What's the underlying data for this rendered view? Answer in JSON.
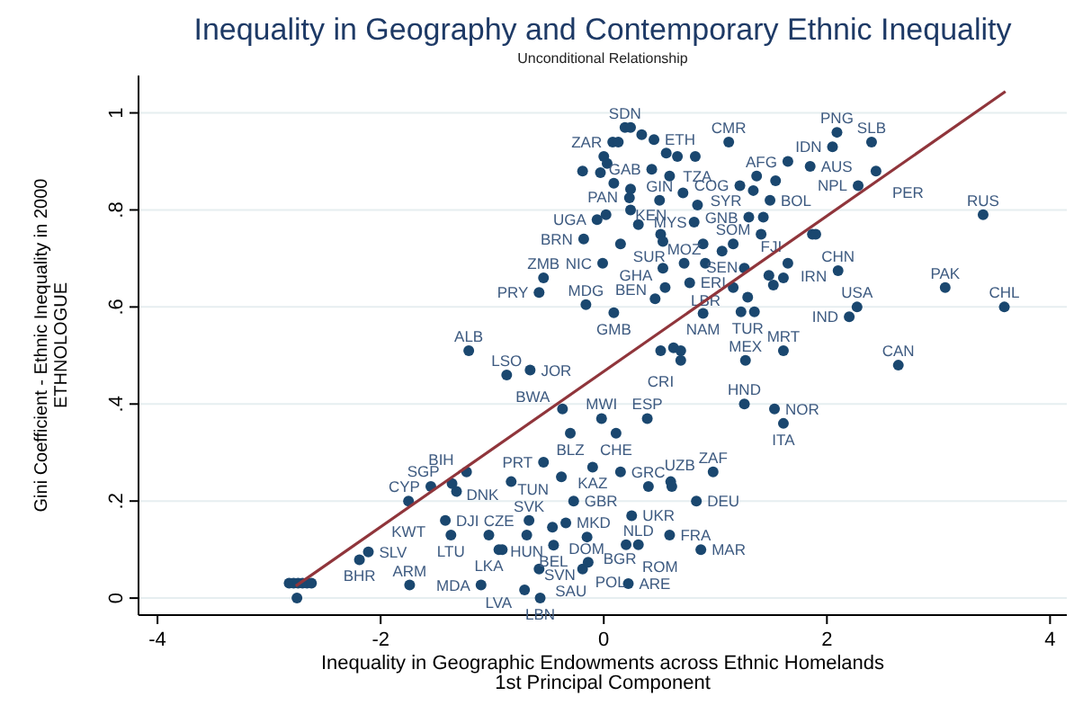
{
  "chart_data": {
    "type": "scatter",
    "title": "Inequality in Geography and Contemporary Ethnic Inequality",
    "subtitle": "Unconditional Relationship",
    "xlabel": "Inequality in Geographic Endowments across Ethnic Homelands\n1st Principal Component",
    "ylabel": "Gini Coefficient - Ethnic Inequality in 2000\nETHNOLOGUE",
    "xlim": [
      -4.17,
      4.15
    ],
    "ylim": [
      -0.035,
      1.077
    ],
    "xticks": [
      -4,
      -2,
      0,
      2,
      4
    ],
    "yticks": [
      0,
      {
        "value": 0.2,
        "label": ".2"
      },
      {
        "value": 0.4,
        "label": ".4"
      },
      {
        "value": 0.6,
        "label": ".6"
      },
      {
        "value": 0.8,
        "label": ".8"
      },
      1
    ],
    "grid": "y",
    "series": [
      {
        "color": "#1a476f",
        "marker": "circle",
        "x": [
          -0.19,
          -0.18,
          -0.54,
          -0.58,
          -0.16,
          -1.21,
          -0.87,
          -0.66,
          -0.37,
          -0.3,
          -0.54,
          -0.38,
          -0.1,
          -1.23,
          -0.83,
          -1.55,
          -1.36,
          -1.32,
          -1.75,
          -0.27,
          -1.42,
          -1.37,
          -0.67,
          -0.69,
          -1.03,
          -0.94,
          -0.91,
          -0.46,
          -0.34,
          -0.15,
          -0.45,
          -0.58,
          -0.71,
          -0.57,
          -0.19,
          -0.14,
          -1.74,
          -1.1,
          -2.11,
          -2.19,
          -2.82,
          -2.78,
          -2.74,
          -2.7,
          -2.66,
          -2.62,
          -2.75,
          0.51,
          0.625,
          0.69,
          0.69,
          1.27,
          1.61,
          2.64,
          1.26,
          1.53,
          1.61,
          -0.02,
          0.11,
          0.39,
          0.15,
          0.4,
          0.6,
          0.61,
          0.98,
          0.83,
          0.25,
          0.59,
          0.87,
          0.2,
          0.31,
          0.22,
          2.09,
          2.05,
          2.4,
          1.85,
          1.65,
          2.44,
          2.28,
          1.12,
          3.4,
          2.1,
          3.06,
          3.59,
          2.27,
          2.2,
          1.87,
          1.9,
          1.22,
          1.34,
          1.54,
          1.37,
          1.49,
          1.3,
          1.43,
          1.41,
          1.65,
          1.26,
          1.61,
          1.48,
          1.52,
          1.16,
          1.29,
          1.23,
          1.35,
          0.89,
          0.09,
          0.46,
          0.55,
          0.77,
          0.53,
          0.72,
          0.91,
          1.06,
          0.89,
          1.16,
          0.15,
          -0.01,
          -0.06,
          0.02,
          0.24,
          0.51,
          0.53,
          0.31,
          0.81,
          0.84,
          0.5,
          0.23,
          0.71,
          0.59,
          0.43,
          0.56,
          0.82,
          0.66,
          0.45,
          0.34,
          0.19,
          0.24,
          0.08,
          0.13,
          0.0,
          -0.03,
          0.09,
          0.24,
          0.03
        ],
        "values": [
          0.88,
          0.74,
          0.66,
          0.63,
          0.605,
          0.51,
          0.46,
          0.47,
          0.39,
          0.34,
          0.28,
          0.25,
          0.27,
          0.26,
          0.24,
          0.23,
          0.236,
          0.22,
          0.2,
          0.2,
          0.16,
          0.13,
          0.16,
          0.13,
          0.13,
          0.1,
          0.1,
          0.146,
          0.155,
          0.126,
          0.109,
          0.06,
          0.017,
          0.0,
          0.06,
          0.074,
          0.027,
          0.027,
          0.095,
          0.079,
          0.031,
          0.031,
          0.031,
          0.031,
          0.031,
          0.031,
          0.0,
          0.51,
          0.516,
          0.51,
          0.49,
          0.49,
          0.51,
          0.48,
          0.4,
          0.39,
          0.36,
          0.37,
          0.34,
          0.37,
          0.26,
          0.23,
          0.24,
          0.23,
          0.26,
          0.2,
          0.17,
          0.13,
          0.1,
          0.11,
          0.11,
          0.03,
          0.96,
          0.93,
          0.94,
          0.89,
          0.9,
          0.88,
          0.85,
          0.94,
          0.79,
          0.675,
          0.64,
          0.6,
          0.6,
          0.58,
          0.75,
          0.75,
          0.85,
          0.84,
          0.86,
          0.87,
          0.82,
          0.785,
          0.785,
          0.75,
          0.69,
          0.68,
          0.66,
          0.665,
          0.645,
          0.64,
          0.62,
          0.59,
          0.59,
          0.587,
          0.588,
          0.617,
          0.64,
          0.65,
          0.68,
          0.69,
          0.69,
          0.715,
          0.73,
          0.73,
          0.73,
          0.69,
          0.78,
          0.79,
          0.8,
          0.75,
          0.735,
          0.77,
          0.775,
          0.81,
          0.82,
          0.825,
          0.835,
          0.87,
          0.884,
          0.917,
          0.91,
          0.91,
          0.945,
          0.955,
          0.97,
          0.97,
          0.94,
          0.94,
          0.91,
          0.877,
          0.855,
          0.843,
          0.896
        ],
        "value_labels": [
          null,
          "BRN",
          "ZMB",
          "PRY",
          "MDG",
          "ALB",
          "LSO",
          "JOR",
          "BWA",
          "BLZ",
          "PRT",
          "TUN",
          "KAZ",
          "BIH",
          "DNK",
          "CYP",
          "SGP",
          null,
          "KWT",
          "GBR",
          "DJI",
          "LTU",
          "SVK",
          "HUN",
          "LKA",
          "CZE",
          null,
          "DOM",
          "MKD",
          "BGR",
          "BEL",
          "SAU",
          "LVA",
          "LBN",
          "POL",
          "SVN",
          "ARM",
          "MDA",
          "SLV",
          "BHR",
          null,
          null,
          null,
          null,
          null,
          null,
          null,
          "CRI",
          null,
          null,
          null,
          "MEX",
          "MRT",
          "CAN",
          "HND",
          "NOR",
          "ITA",
          "MWI",
          "CHE",
          "ESP",
          "GRC",
          "UZB",
          null,
          null,
          "ZAF",
          "DEU",
          "UKR",
          "FRA",
          "MAR",
          "ROM",
          "NLD",
          "ARE",
          "PNG",
          "IDN",
          "SLB",
          "AUS",
          "AFG",
          "PER",
          "NPL",
          "CMR",
          "RUS",
          "CHN",
          "PAK",
          "CHL",
          "USA",
          "IND",
          null,
          null,
          "COG",
          null,
          null,
          null,
          "BOL",
          "GNB",
          null,
          null,
          "IRN",
          "FJI",
          null,
          null,
          null,
          "LBR",
          "TUR",
          null,
          null,
          "NAM",
          "GMB",
          null,
          "GHA",
          "ERI",
          "BEN",
          "MOZ",
          null,
          "SEN",
          "MYS",
          "SOM",
          "SUR",
          "NIC",
          "UGA",
          null,
          "PAN",
          null,
          null,
          null,
          "SYR",
          "TZA",
          "GIN",
          null,
          "KEN",
          null,
          "GAB",
          null,
          null,
          null,
          "ETH",
          null,
          "SDN",
          null,
          "ZAR",
          null,
          null,
          null,
          null,
          null,
          null
        ]
      },
      {
        "type": "line",
        "color": "#90353b",
        "x": [
          -2.76,
          3.6
        ],
        "values": [
          0.025,
          1.044
        ]
      }
    ]
  }
}
